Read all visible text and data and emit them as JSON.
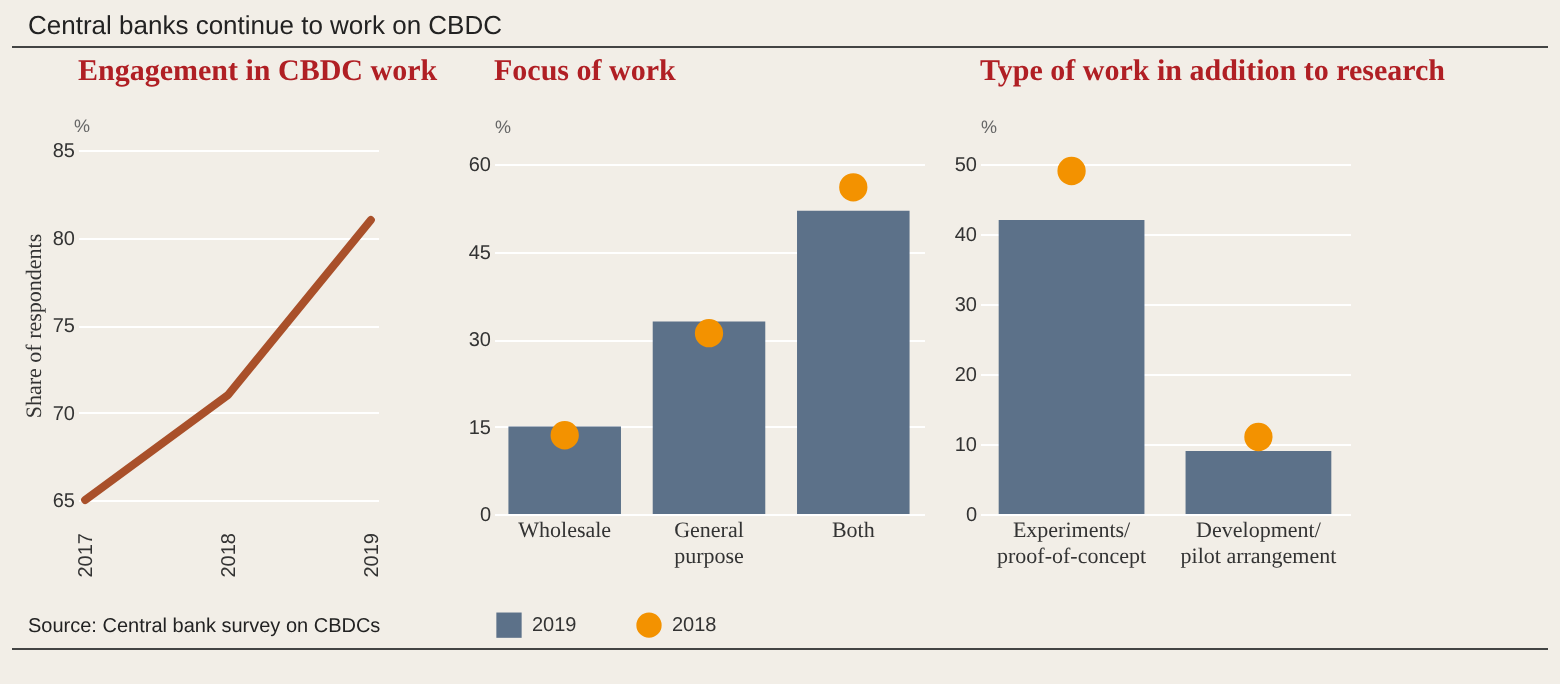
{
  "chart_data": [
    {
      "type": "other",
      "title": "Central banks continue to work on CBDC",
      "annotations": [
        "Source: Central bank survey on CBDCs"
      ]
    },
    {
      "type": "line",
      "title": "Engagement in CBDC work",
      "ylabel": "Share of respondents",
      "annotations": [
        "%"
      ],
      "categories": [
        "2017",
        "2018",
        "2019"
      ],
      "series": [
        {
          "color": "#a9502a",
          "values": [
            65,
            71,
            81
          ]
        }
      ],
      "ylim": [
        65,
        85
      ],
      "yticks": [
        65,
        70,
        75,
        80,
        85
      ],
      "grid": "y"
    },
    {
      "type": "bar",
      "title": "Focus of work",
      "ylabel": "%",
      "categories": [
        "Wholesale",
        "General purpose",
        "Both"
      ],
      "series": [
        {
          "name": "2019",
          "type": "bar",
          "color": "#5c7189",
          "values": [
            15,
            33,
            52
          ]
        },
        {
          "name": "2018",
          "type": "scatter",
          "color": "#f39200",
          "values": [
            13.5,
            31,
            56
          ]
        }
      ],
      "ylim": [
        0,
        60
      ],
      "yticks": [
        0,
        15,
        30,
        45,
        60
      ],
      "grid": "y",
      "legend": "bottom",
      "marker": "circle"
    },
    {
      "type": "bar",
      "title": "Type of work in addition to research",
      "ylabel": "%",
      "categories": [
        "Experiments/ proof-of-concept",
        "Development/ pilot arrangement"
      ],
      "series": [
        {
          "type": "bar",
          "color": "#5c7189",
          "values": [
            42,
            9
          ]
        },
        {
          "type": "scatter",
          "color": "#f39200",
          "values": [
            49,
            11
          ]
        }
      ],
      "ylim": [
        0,
        50
      ],
      "yticks": [
        0,
        10,
        20,
        30,
        40,
        50
      ],
      "grid": "y",
      "marker": "circle"
    }
  ]
}
